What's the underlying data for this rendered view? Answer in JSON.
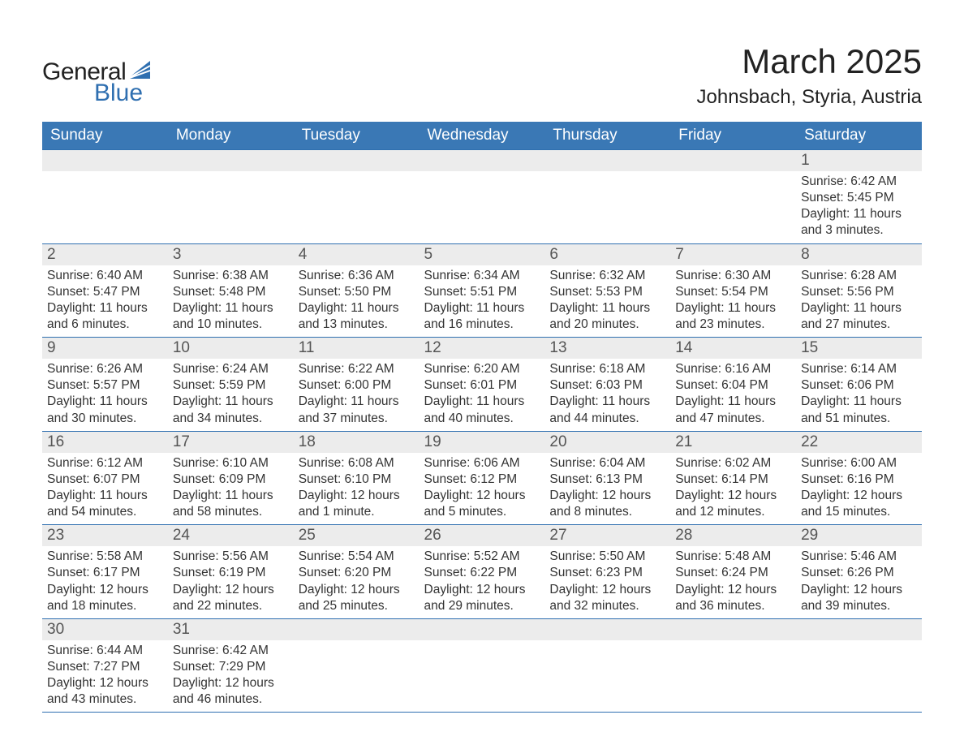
{
  "logo": {
    "text_general": "General",
    "text_blue": "Blue",
    "accent_color": "#2f6fb0"
  },
  "header": {
    "month_title": "March 2025",
    "location": "Johnsbach, Styria, Austria"
  },
  "colors": {
    "header_bg": "#3a78b5",
    "header_fg": "#ffffff",
    "daynum_bg": "#ececec",
    "border": "#2f6fb0",
    "text": "#333333",
    "page_bg": "#ffffff"
  },
  "weekdays": [
    "Sunday",
    "Monday",
    "Tuesday",
    "Wednesday",
    "Thursday",
    "Friday",
    "Saturday"
  ],
  "weeks": [
    [
      null,
      null,
      null,
      null,
      null,
      null,
      {
        "n": "1",
        "sunrise": "Sunrise: 6:42 AM",
        "sunset": "Sunset: 5:45 PM",
        "daylight1": "Daylight: 11 hours",
        "daylight2": "and 3 minutes."
      }
    ],
    [
      {
        "n": "2",
        "sunrise": "Sunrise: 6:40 AM",
        "sunset": "Sunset: 5:47 PM",
        "daylight1": "Daylight: 11 hours",
        "daylight2": "and 6 minutes."
      },
      {
        "n": "3",
        "sunrise": "Sunrise: 6:38 AM",
        "sunset": "Sunset: 5:48 PM",
        "daylight1": "Daylight: 11 hours",
        "daylight2": "and 10 minutes."
      },
      {
        "n": "4",
        "sunrise": "Sunrise: 6:36 AM",
        "sunset": "Sunset: 5:50 PM",
        "daylight1": "Daylight: 11 hours",
        "daylight2": "and 13 minutes."
      },
      {
        "n": "5",
        "sunrise": "Sunrise: 6:34 AM",
        "sunset": "Sunset: 5:51 PM",
        "daylight1": "Daylight: 11 hours",
        "daylight2": "and 16 minutes."
      },
      {
        "n": "6",
        "sunrise": "Sunrise: 6:32 AM",
        "sunset": "Sunset: 5:53 PM",
        "daylight1": "Daylight: 11 hours",
        "daylight2": "and 20 minutes."
      },
      {
        "n": "7",
        "sunrise": "Sunrise: 6:30 AM",
        "sunset": "Sunset: 5:54 PM",
        "daylight1": "Daylight: 11 hours",
        "daylight2": "and 23 minutes."
      },
      {
        "n": "8",
        "sunrise": "Sunrise: 6:28 AM",
        "sunset": "Sunset: 5:56 PM",
        "daylight1": "Daylight: 11 hours",
        "daylight2": "and 27 minutes."
      }
    ],
    [
      {
        "n": "9",
        "sunrise": "Sunrise: 6:26 AM",
        "sunset": "Sunset: 5:57 PM",
        "daylight1": "Daylight: 11 hours",
        "daylight2": "and 30 minutes."
      },
      {
        "n": "10",
        "sunrise": "Sunrise: 6:24 AM",
        "sunset": "Sunset: 5:59 PM",
        "daylight1": "Daylight: 11 hours",
        "daylight2": "and 34 minutes."
      },
      {
        "n": "11",
        "sunrise": "Sunrise: 6:22 AM",
        "sunset": "Sunset: 6:00 PM",
        "daylight1": "Daylight: 11 hours",
        "daylight2": "and 37 minutes."
      },
      {
        "n": "12",
        "sunrise": "Sunrise: 6:20 AM",
        "sunset": "Sunset: 6:01 PM",
        "daylight1": "Daylight: 11 hours",
        "daylight2": "and 40 minutes."
      },
      {
        "n": "13",
        "sunrise": "Sunrise: 6:18 AM",
        "sunset": "Sunset: 6:03 PM",
        "daylight1": "Daylight: 11 hours",
        "daylight2": "and 44 minutes."
      },
      {
        "n": "14",
        "sunrise": "Sunrise: 6:16 AM",
        "sunset": "Sunset: 6:04 PM",
        "daylight1": "Daylight: 11 hours",
        "daylight2": "and 47 minutes."
      },
      {
        "n": "15",
        "sunrise": "Sunrise: 6:14 AM",
        "sunset": "Sunset: 6:06 PM",
        "daylight1": "Daylight: 11 hours",
        "daylight2": "and 51 minutes."
      }
    ],
    [
      {
        "n": "16",
        "sunrise": "Sunrise: 6:12 AM",
        "sunset": "Sunset: 6:07 PM",
        "daylight1": "Daylight: 11 hours",
        "daylight2": "and 54 minutes."
      },
      {
        "n": "17",
        "sunrise": "Sunrise: 6:10 AM",
        "sunset": "Sunset: 6:09 PM",
        "daylight1": "Daylight: 11 hours",
        "daylight2": "and 58 minutes."
      },
      {
        "n": "18",
        "sunrise": "Sunrise: 6:08 AM",
        "sunset": "Sunset: 6:10 PM",
        "daylight1": "Daylight: 12 hours",
        "daylight2": "and 1 minute."
      },
      {
        "n": "19",
        "sunrise": "Sunrise: 6:06 AM",
        "sunset": "Sunset: 6:12 PM",
        "daylight1": "Daylight: 12 hours",
        "daylight2": "and 5 minutes."
      },
      {
        "n": "20",
        "sunrise": "Sunrise: 6:04 AM",
        "sunset": "Sunset: 6:13 PM",
        "daylight1": "Daylight: 12 hours",
        "daylight2": "and 8 minutes."
      },
      {
        "n": "21",
        "sunrise": "Sunrise: 6:02 AM",
        "sunset": "Sunset: 6:14 PM",
        "daylight1": "Daylight: 12 hours",
        "daylight2": "and 12 minutes."
      },
      {
        "n": "22",
        "sunrise": "Sunrise: 6:00 AM",
        "sunset": "Sunset: 6:16 PM",
        "daylight1": "Daylight: 12 hours",
        "daylight2": "and 15 minutes."
      }
    ],
    [
      {
        "n": "23",
        "sunrise": "Sunrise: 5:58 AM",
        "sunset": "Sunset: 6:17 PM",
        "daylight1": "Daylight: 12 hours",
        "daylight2": "and 18 minutes."
      },
      {
        "n": "24",
        "sunrise": "Sunrise: 5:56 AM",
        "sunset": "Sunset: 6:19 PM",
        "daylight1": "Daylight: 12 hours",
        "daylight2": "and 22 minutes."
      },
      {
        "n": "25",
        "sunrise": "Sunrise: 5:54 AM",
        "sunset": "Sunset: 6:20 PM",
        "daylight1": "Daylight: 12 hours",
        "daylight2": "and 25 minutes."
      },
      {
        "n": "26",
        "sunrise": "Sunrise: 5:52 AM",
        "sunset": "Sunset: 6:22 PM",
        "daylight1": "Daylight: 12 hours",
        "daylight2": "and 29 minutes."
      },
      {
        "n": "27",
        "sunrise": "Sunrise: 5:50 AM",
        "sunset": "Sunset: 6:23 PM",
        "daylight1": "Daylight: 12 hours",
        "daylight2": "and 32 minutes."
      },
      {
        "n": "28",
        "sunrise": "Sunrise: 5:48 AM",
        "sunset": "Sunset: 6:24 PM",
        "daylight1": "Daylight: 12 hours",
        "daylight2": "and 36 minutes."
      },
      {
        "n": "29",
        "sunrise": "Sunrise: 5:46 AM",
        "sunset": "Sunset: 6:26 PM",
        "daylight1": "Daylight: 12 hours",
        "daylight2": "and 39 minutes."
      }
    ],
    [
      {
        "n": "30",
        "sunrise": "Sunrise: 6:44 AM",
        "sunset": "Sunset: 7:27 PM",
        "daylight1": "Daylight: 12 hours",
        "daylight2": "and 43 minutes."
      },
      {
        "n": "31",
        "sunrise": "Sunrise: 6:42 AM",
        "sunset": "Sunset: 7:29 PM",
        "daylight1": "Daylight: 12 hours",
        "daylight2": "and 46 minutes."
      },
      null,
      null,
      null,
      null,
      null
    ]
  ]
}
